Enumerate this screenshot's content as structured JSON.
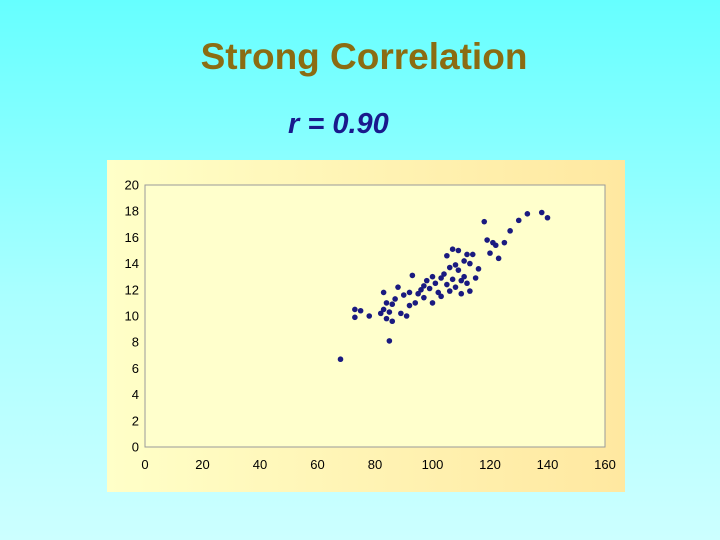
{
  "slide": {
    "title": "Strong Correlation",
    "subtitle": "r = 0.90"
  },
  "colors": {
    "background": "#66ffff",
    "title": "#8b6c12",
    "subtitle": "#1a1a8c",
    "plot_background": "#ffffcc",
    "points": "#1a1a80"
  },
  "chart_data": {
    "type": "scatter",
    "title": "",
    "xlabel": "",
    "ylabel": "",
    "xlim": [
      0,
      160
    ],
    "ylim": [
      0,
      20
    ],
    "xticks": [
      0,
      20,
      40,
      60,
      80,
      100,
      120,
      140,
      160
    ],
    "yticks": [
      0,
      2,
      4,
      6,
      8,
      10,
      12,
      14,
      16,
      18,
      20
    ],
    "grid": false,
    "legend": "none",
    "points": [
      [
        68,
        6.7
      ],
      [
        73,
        10.5
      ],
      [
        73,
        9.9
      ],
      [
        75,
        10.4
      ],
      [
        78,
        10.0
      ],
      [
        82,
        10.2
      ],
      [
        83,
        11.8
      ],
      [
        83,
        10.5
      ],
      [
        84,
        11.0
      ],
      [
        84,
        9.8
      ],
      [
        85,
        8.1
      ],
      [
        85,
        10.3
      ],
      [
        86,
        9.6
      ],
      [
        86,
        10.9
      ],
      [
        87,
        11.3
      ],
      [
        88,
        12.2
      ],
      [
        89,
        10.2
      ],
      [
        90,
        11.6
      ],
      [
        91,
        10.0
      ],
      [
        92,
        11.8
      ],
      [
        92,
        10.8
      ],
      [
        93,
        13.1
      ],
      [
        94,
        11.0
      ],
      [
        95,
        11.7
      ],
      [
        96,
        12.0
      ],
      [
        97,
        12.3
      ],
      [
        97,
        11.4
      ],
      [
        98,
        12.7
      ],
      [
        99,
        12.1
      ],
      [
        100,
        13.0
      ],
      [
        100,
        11.0
      ],
      [
        101,
        12.5
      ],
      [
        102,
        11.8
      ],
      [
        103,
        12.9
      ],
      [
        103,
        11.5
      ],
      [
        104,
        13.2
      ],
      [
        105,
        12.4
      ],
      [
        105,
        14.6
      ],
      [
        106,
        13.7
      ],
      [
        106,
        11.9
      ],
      [
        107,
        12.8
      ],
      [
        107,
        15.1
      ],
      [
        108,
        13.9
      ],
      [
        108,
        12.2
      ],
      [
        109,
        15.0
      ],
      [
        109,
        13.5
      ],
      [
        110,
        12.7
      ],
      [
        110,
        11.7
      ],
      [
        111,
        14.2
      ],
      [
        111,
        13.0
      ],
      [
        112,
        14.7
      ],
      [
        112,
        12.5
      ],
      [
        113,
        14.0
      ],
      [
        113,
        11.9
      ],
      [
        114,
        14.7
      ],
      [
        115,
        12.9
      ],
      [
        116,
        13.6
      ],
      [
        118,
        17.2
      ],
      [
        119,
        15.8
      ],
      [
        120,
        14.8
      ],
      [
        121,
        15.6
      ],
      [
        122,
        15.4
      ],
      [
        123,
        14.4
      ],
      [
        125,
        15.6
      ],
      [
        127,
        16.5
      ],
      [
        130,
        17.3
      ],
      [
        133,
        17.8
      ],
      [
        138,
        17.9
      ],
      [
        140,
        17.5
      ]
    ]
  }
}
